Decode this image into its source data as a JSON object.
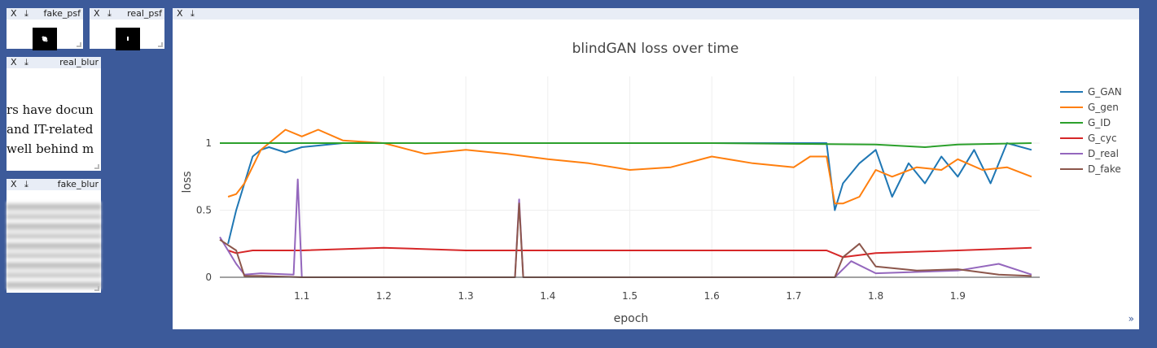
{
  "panes": {
    "fake_psf": {
      "close": "X",
      "download": "⤓",
      "title": "fake_psf"
    },
    "real_psf": {
      "close": "X",
      "download": "⤓",
      "title": "real_psf"
    },
    "real_blur": {
      "close": "X",
      "download": "⤓",
      "title": "real_blur",
      "text_lines": [
        "rs have docun",
        "and IT-related",
        "well behind m"
      ]
    },
    "fake_blur": {
      "close": "X",
      "download": "⤓",
      "title": "fake_blur"
    },
    "plot": {
      "close": "X",
      "download": "⤓",
      "expand": "»"
    }
  },
  "chart_data": {
    "type": "line",
    "title": "blindGAN loss over time",
    "xlabel": "epoch",
    "ylabel": "loss",
    "xlim": [
      1.0,
      2.0
    ],
    "ylim": [
      0,
      1.0
    ],
    "x_ticks": [
      "1.1",
      "1.2",
      "1.3",
      "1.4",
      "1.5",
      "1.6",
      "1.7",
      "1.8",
      "1.9"
    ],
    "y_ticks": [
      "0",
      "0.5",
      "1"
    ],
    "grid": true,
    "legend_placement": "right",
    "series": [
      {
        "name": "G_GAN",
        "color": "#1f77b4",
        "x": [
          1.01,
          1.02,
          1.03,
          1.04,
          1.05,
          1.06,
          1.08,
          1.1,
          1.15,
          1.2,
          1.3,
          1.4,
          1.5,
          1.6,
          1.7,
          1.74,
          1.75,
          1.76,
          1.78,
          1.8,
          1.82,
          1.84,
          1.86,
          1.88,
          1.9,
          1.92,
          1.94,
          1.96,
          1.99
        ],
        "values": [
          0.25,
          0.5,
          0.7,
          0.9,
          0.95,
          0.97,
          0.93,
          0.97,
          1.0,
          1.0,
          1.0,
          1.0,
          1.0,
          1.0,
          1.0,
          1.0,
          0.5,
          0.7,
          0.85,
          0.95,
          0.6,
          0.85,
          0.7,
          0.9,
          0.75,
          0.95,
          0.7,
          1.0,
          0.95
        ]
      },
      {
        "name": "G_gen",
        "color": "#ff7f0e",
        "x": [
          1.01,
          1.02,
          1.03,
          1.05,
          1.08,
          1.1,
          1.12,
          1.15,
          1.2,
          1.25,
          1.3,
          1.35,
          1.4,
          1.45,
          1.5,
          1.55,
          1.6,
          1.65,
          1.7,
          1.72,
          1.74,
          1.75,
          1.76,
          1.78,
          1.8,
          1.82,
          1.85,
          1.88,
          1.9,
          1.93,
          1.96,
          1.99
        ],
        "values": [
          0.6,
          0.62,
          0.7,
          0.95,
          1.1,
          1.05,
          1.1,
          1.02,
          1.0,
          0.92,
          0.95,
          0.92,
          0.88,
          0.85,
          0.8,
          0.82,
          0.9,
          0.85,
          0.82,
          0.9,
          0.9,
          0.55,
          0.55,
          0.6,
          0.8,
          0.75,
          0.82,
          0.8,
          0.88,
          0.8,
          0.82,
          0.75
        ]
      },
      {
        "name": "G_ID",
        "color": "#2ca02c",
        "x": [
          1.0,
          1.2,
          1.4,
          1.6,
          1.8,
          1.86,
          1.9,
          1.99
        ],
        "values": [
          1.0,
          1.0,
          1.0,
          1.0,
          0.99,
          0.97,
          0.99,
          1.0
        ]
      },
      {
        "name": "G_cyc",
        "color": "#d62728",
        "x": [
          1.01,
          1.02,
          1.04,
          1.1,
          1.2,
          1.3,
          1.4,
          1.5,
          1.6,
          1.7,
          1.74,
          1.76,
          1.8,
          1.9,
          1.99
        ],
        "values": [
          0.2,
          0.18,
          0.2,
          0.2,
          0.22,
          0.2,
          0.2,
          0.2,
          0.2,
          0.2,
          0.2,
          0.15,
          0.18,
          0.2,
          0.22
        ]
      },
      {
        "name": "D_real",
        "color": "#9467bd",
        "x": [
          1.0,
          1.02,
          1.03,
          1.05,
          1.09,
          1.095,
          1.1,
          1.2,
          1.36,
          1.365,
          1.37,
          1.5,
          1.75,
          1.77,
          1.8,
          1.9,
          1.95,
          1.99
        ],
        "values": [
          0.3,
          0.1,
          0.02,
          0.03,
          0.02,
          0.73,
          0.0,
          0.0,
          0.0,
          0.58,
          0.0,
          0.0,
          0.0,
          0.12,
          0.03,
          0.05,
          0.1,
          0.02
        ]
      },
      {
        "name": "D_fake",
        "color": "#8c564b",
        "x": [
          1.0,
          1.02,
          1.03,
          1.05,
          1.1,
          1.2,
          1.36,
          1.365,
          1.37,
          1.5,
          1.75,
          1.76,
          1.78,
          1.8,
          1.85,
          1.9,
          1.95,
          1.99
        ],
        "values": [
          0.28,
          0.2,
          0.01,
          0.01,
          0.0,
          0.0,
          0.0,
          0.55,
          0.0,
          0.0,
          0.0,
          0.15,
          0.25,
          0.08,
          0.05,
          0.06,
          0.02,
          0.01
        ]
      }
    ]
  }
}
